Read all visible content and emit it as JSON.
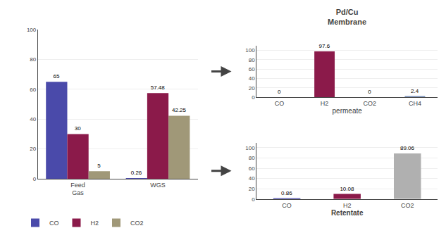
{
  "chart_data": [
    {
      "type": "bar",
      "categories": [
        "Feed\nGas",
        "WGS"
      ],
      "series": [
        {
          "name": "CO",
          "color": "#4a4aaa",
          "values": [
            65,
            0.26
          ]
        },
        {
          "name": "H2",
          "color": "#8b1a4a",
          "values": [
            30,
            57.48
          ]
        },
        {
          "name": "CO2",
          "color": "#a09878",
          "values": [
            5,
            42.25
          ]
        }
      ],
      "ylim": [
        0,
        100
      ],
      "yticks": [
        0,
        20,
        40,
        60,
        80,
        100
      ],
      "grid": true,
      "legend": "lower left",
      "data_labels": true
    },
    {
      "type": "bar",
      "annotations": [
        "Pd/Cu\nMembrane"
      ],
      "xlabel": "permeate",
      "categories": [
        "CO",
        "H2",
        "CO2",
        "CH4"
      ],
      "values": [
        0,
        97.6,
        0,
        2.4
      ],
      "colors": [
        "#4a4aaa",
        "#8b1a4a",
        "#b0b0b0",
        "#7890b8"
      ],
      "ylim": [
        0,
        110
      ],
      "yticks": [
        0,
        20,
        40,
        60,
        80,
        100
      ],
      "grid": true,
      "data_labels": true
    },
    {
      "type": "bar",
      "xlabel": "Retentate",
      "categories": [
        "CO",
        "H2",
        "CO2"
      ],
      "values": [
        0.86,
        10.08,
        89.06
      ],
      "colors": [
        "#4a4aaa",
        "#8b1a4a",
        "#b0b0b0"
      ],
      "ylim": [
        0,
        110
      ],
      "yticks": [
        0,
        20,
        40,
        60,
        80,
        100
      ],
      "grid": true,
      "data_labels": true
    }
  ]
}
